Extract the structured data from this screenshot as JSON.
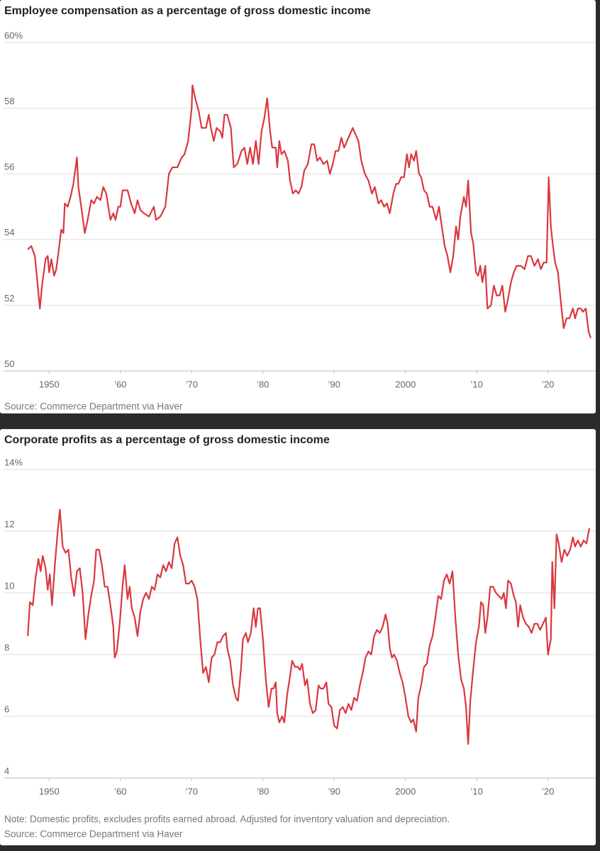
{
  "chart_data": [
    {
      "type": "line",
      "title": "Employee compensation as a percentage of gross domestic income",
      "source": "Source: Commerce Department via Haver",
      "x": [
        1947,
        1947.5,
        1948,
        1948.7,
        1949,
        1949.5,
        1949.8,
        1950,
        1950.3,
        1950.7,
        1951,
        1951.3,
        1951.7,
        1952,
        1952.2,
        1952.6,
        1953,
        1953.4,
        1953.9,
        1954.1,
        1954.5,
        1955,
        1955.4,
        1955.9,
        1956.3,
        1956.7,
        1957.2,
        1957.6,
        1958,
        1958.3,
        1958.6,
        1959,
        1959.3,
        1959.7,
        1960,
        1960.3,
        1961,
        1961.5,
        1962,
        1962.4,
        1962.8,
        1963.3,
        1964,
        1964.7,
        1965,
        1965.6,
        1966.3,
        1966.8,
        1967.3,
        1968,
        1968.6,
        1969,
        1969.5,
        1970,
        1970.1,
        1970.5,
        1971,
        1971.4,
        1972,
        1972.4,
        1972.7,
        1973.1,
        1973.5,
        1974,
        1974.3,
        1974.6,
        1975,
        1975.5,
        1975.9,
        1976.4,
        1977,
        1977.4,
        1977.8,
        1978.2,
        1978.6,
        1979,
        1979.4,
        1979.8,
        1980.2,
        1980.6,
        1981,
        1981.3,
        1981.8,
        1982,
        1982.3,
        1982.6,
        1983,
        1983.5,
        1983.8,
        1984.2,
        1984.6,
        1985,
        1985.4,
        1985.8,
        1986.3,
        1986.8,
        1987.2,
        1987.6,
        1988,
        1988.5,
        1989,
        1989.4,
        1989.8,
        1990.2,
        1990.6,
        1991,
        1991.4,
        1991.8,
        1992.2,
        1992.6,
        1993,
        1993.4,
        1993.8,
        1994.3,
        1994.8,
        1995.3,
        1995.7,
        1996.2,
        1996.6,
        1997,
        1997.4,
        1997.8,
        1998.3,
        1998.7,
        1999,
        1999.4,
        1999.8,
        2000.2,
        2000.5,
        2000.8,
        2001.2,
        2001.5,
        2001.9,
        2002.2,
        2002.6,
        2003,
        2003.4,
        2003.8,
        2004.3,
        2004.7,
        2005.1,
        2005.5,
        2005.9,
        2006.3,
        2006.7,
        2007.1,
        2007.4,
        2007.7,
        2008.2,
        2008.5,
        2008.8,
        2009.2,
        2009.5,
        2009.9,
        2010.2,
        2010.5,
        2010.8,
        2011.2,
        2011.5,
        2012,
        2012.4,
        2012.8,
        2013.2,
        2013.6,
        2014,
        2014.4,
        2014.8,
        2015.2,
        2015.6,
        2016.2,
        2016.7,
        2017.2,
        2017.6,
        2018.1,
        2018.6,
        2019,
        2019.4,
        2019.8,
        2020.1,
        2020.4,
        2020.7,
        2021,
        2021.4,
        2021.8,
        2022.2,
        2022.6,
        2023,
        2023.5,
        2023.8,
        2024.2,
        2024.6,
        2024.9,
        2025.3,
        2025.7,
        2026
      ],
      "values": [
        53.7,
        53.8,
        53.5,
        51.9,
        52.6,
        53.4,
        53.5,
        53.0,
        53.4,
        52.9,
        53.1,
        53.6,
        54.3,
        54.2,
        55.1,
        55.0,
        55.3,
        55.7,
        56.5,
        55.6,
        55.0,
        54.2,
        54.6,
        55.2,
        55.1,
        55.3,
        55.2,
        55.6,
        55.4,
        55.0,
        54.6,
        54.8,
        54.6,
        55.0,
        55.0,
        55.5,
        55.5,
        55.1,
        54.8,
        55.2,
        54.9,
        54.8,
        54.7,
        55.0,
        54.6,
        54.7,
        55.0,
        56.0,
        56.2,
        56.2,
        56.5,
        56.6,
        57.0,
        58.0,
        58.7,
        58.3,
        57.9,
        57.4,
        57.4,
        57.8,
        57.4,
        57.0,
        57.4,
        57.3,
        57.1,
        57.8,
        57.8,
        57.4,
        56.2,
        56.3,
        56.7,
        56.8,
        56.3,
        56.8,
        56.3,
        57.0,
        56.3,
        57.3,
        57.7,
        58.3,
        57.3,
        56.8,
        56.8,
        56.2,
        57.0,
        56.6,
        56.7,
        56.4,
        55.8,
        55.4,
        55.5,
        55.4,
        55.6,
        56.1,
        56.3,
        56.9,
        56.9,
        56.4,
        56.5,
        56.3,
        56.4,
        56.0,
        56.3,
        56.7,
        56.7,
        57.1,
        56.8,
        57.0,
        57.2,
        57.4,
        57.2,
        57.0,
        56.4,
        56.0,
        55.8,
        55.4,
        55.6,
        55.1,
        55.2,
        55.0,
        55.1,
        54.8,
        55.4,
        55.7,
        55.7,
        55.9,
        55.9,
        56.6,
        56.2,
        56.6,
        56.4,
        56.7,
        56.0,
        55.9,
        55.5,
        55.4,
        55.0,
        55.0,
        54.6,
        55.0,
        54.4,
        53.8,
        53.5,
        53.0,
        53.5,
        54.4,
        54.0,
        54.7,
        55.3,
        55.0,
        55.8,
        54.2,
        53.9,
        53.0,
        52.9,
        53.2,
        52.7,
        53.2,
        51.9,
        52.0,
        52.6,
        52.3,
        52.3,
        52.6,
        51.8,
        52.2,
        52.7,
        53.0,
        53.2,
        53.2,
        53.1,
        53.5,
        53.5,
        53.2,
        53.4,
        53.1,
        53.3,
        53.3,
        55.9,
        54.4,
        53.8,
        53.3,
        53.0,
        52.1,
        51.3,
        51.6,
        51.6,
        51.9,
        51.6,
        51.9,
        51.9,
        51.8,
        51.9,
        51.2,
        51.0
      ],
      "color": "#d9383f",
      "xlim": [
        1943.6,
        2026.7
      ],
      "xticks": [
        1950,
        {
          "value": 1960,
          "label": "’60"
        },
        {
          "value": 1970,
          "label": "’70"
        },
        {
          "value": 1980,
          "label": "’80"
        },
        {
          "value": 1990,
          "label": "’90"
        },
        2000,
        {
          "value": 2010,
          "label": "’10"
        },
        {
          "value": 2020,
          "label": "’20"
        }
      ],
      "ylim": [
        50,
        60
      ],
      "yticks": [
        50,
        52,
        54,
        56,
        58,
        {
          "value": 60,
          "label": "60%"
        }
      ],
      "grid": true
    },
    {
      "type": "line",
      "title": "Corporate profits as a percentage of gross domestic income",
      "note": "Note: Domestic profits, excludes profits earned abroad. Adjusted for inventory valuation and depreciation.",
      "source": "Source: Commerce Department via Haver",
      "x": [
        1947,
        1947.3,
        1947.7,
        1948.1,
        1948.5,
        1948.8,
        1949.1,
        1949.5,
        1949.8,
        1950.1,
        1950.4,
        1950.8,
        1951.2,
        1951.5,
        1951.9,
        1952.3,
        1952.7,
        1953.1,
        1953.5,
        1953.9,
        1954.3,
        1954.7,
        1955.1,
        1955.5,
        1955.9,
        1956.3,
        1956.6,
        1957,
        1957.4,
        1957.8,
        1958.2,
        1958.6,
        1959,
        1959.2,
        1959.5,
        1959.9,
        1960.3,
        1960.6,
        1961,
        1961.3,
        1961.6,
        1962,
        1962.4,
        1962.8,
        1963.2,
        1963.6,
        1964,
        1964.4,
        1964.8,
        1965.2,
        1965.6,
        1966,
        1966.4,
        1966.8,
        1967.2,
        1967.6,
        1968,
        1968.4,
        1968.8,
        1969.2,
        1969.6,
        1970,
        1970.4,
        1970.8,
        1971.2,
        1971.6,
        1972,
        1972.4,
        1972.8,
        1973.2,
        1973.6,
        1974,
        1974.4,
        1974.8,
        1975,
        1975.4,
        1975.8,
        1976.2,
        1976.5,
        1976.9,
        1977.2,
        1977.6,
        1977.9,
        1978.3,
        1978.7,
        1979,
        1979.3,
        1979.6,
        1980,
        1980.4,
        1980.8,
        1981.2,
        1981.5,
        1981.8,
        1982,
        1982.3,
        1982.7,
        1983,
        1983.4,
        1983.8,
        1984.1,
        1984.5,
        1984.9,
        1985.2,
        1985.5,
        1985.9,
        1986.2,
        1986.6,
        1987,
        1987.4,
        1987.8,
        1988.1,
        1988.5,
        1988.9,
        1989.2,
        1989.6,
        1990,
        1990.4,
        1990.8,
        1991.2,
        1991.6,
        1992,
        1992.4,
        1992.8,
        1993.2,
        1993.6,
        1994,
        1994.4,
        1994.8,
        1995.2,
        1995.6,
        1996,
        1996.4,
        1996.8,
        1997.2,
        1997.5,
        1997.8,
        1998.1,
        1998.4,
        1998.8,
        1999.2,
        1999.6,
        2000,
        2000.4,
        2000.8,
        2001.1,
        2001.5,
        2001.8,
        2002.2,
        2002.6,
        2003,
        2003.4,
        2003.8,
        2004.2,
        2004.6,
        2005,
        2005.4,
        2005.8,
        2006.2,
        2006.6,
        2007,
        2007.4,
        2007.8,
        2008.2,
        2008.5,
        2008.8,
        2009.1,
        2009.5,
        2009.9,
        2010.3,
        2010.6,
        2010.9,
        2011.2,
        2011.5,
        2011.9,
        2012.3,
        2012.7,
        2013.1,
        2013.5,
        2013.8,
        2014.1,
        2014.4,
        2014.8,
        2015.2,
        2015.5,
        2015.8,
        2016.1,
        2016.5,
        2016.9,
        2017.3,
        2017.7,
        2018.1,
        2018.5,
        2018.9,
        2019.3,
        2019.7,
        2020,
        2020.4,
        2020.6,
        2020.9,
        2021.2,
        2021.5,
        2021.9,
        2022.3,
        2022.7,
        2023.1,
        2023.5,
        2023.8,
        2024.2,
        2024.6,
        2025,
        2025.4,
        2025.8
      ],
      "values": [
        8.6,
        9.7,
        9.6,
        10.5,
        11.1,
        10.7,
        11.2,
        10.8,
        10.1,
        10.6,
        9.6,
        10.9,
        12.0,
        12.7,
        11.5,
        11.3,
        11.4,
        10.5,
        9.9,
        10.7,
        10.8,
        10.0,
        8.5,
        9.3,
        9.9,
        10.4,
        11.4,
        11.4,
        10.9,
        10.2,
        10.2,
        9.6,
        8.9,
        7.9,
        8.1,
        9.0,
        10.2,
        10.9,
        9.8,
        10.2,
        9.5,
        9.2,
        8.6,
        9.4,
        9.8,
        10.0,
        9.8,
        10.2,
        10.1,
        10.6,
        10.5,
        10.9,
        10.7,
        11.0,
        10.8,
        11.6,
        11.8,
        11.2,
        10.9,
        10.3,
        10.3,
        10.4,
        10.2,
        9.8,
        8.5,
        7.4,
        7.6,
        7.1,
        7.9,
        8.0,
        8.4,
        8.4,
        8.6,
        8.7,
        8.2,
        7.8,
        7.0,
        6.6,
        6.5,
        7.5,
        8.5,
        8.7,
        8.4,
        8.7,
        9.5,
        8.9,
        9.5,
        9.5,
        8.5,
        7.2,
        6.3,
        6.9,
        6.9,
        7.1,
        6.1,
        5.8,
        6.0,
        5.8,
        6.7,
        7.3,
        7.8,
        7.6,
        7.6,
        7.5,
        7.7,
        7.0,
        7.2,
        6.4,
        6.1,
        6.2,
        7.0,
        6.9,
        6.9,
        7.1,
        6.4,
        6.3,
        5.7,
        5.6,
        6.2,
        6.3,
        6.1,
        6.4,
        6.2,
        6.6,
        6.5,
        7.0,
        7.4,
        7.9,
        8.1,
        8.0,
        8.6,
        8.8,
        8.7,
        8.9,
        9.3,
        9.0,
        8.2,
        7.9,
        8.0,
        7.8,
        7.4,
        7.1,
        6.6,
        6.0,
        5.8,
        5.9,
        5.5,
        6.6,
        7.0,
        7.6,
        7.7,
        8.3,
        8.6,
        9.2,
        9.9,
        9.8,
        10.4,
        10.6,
        10.3,
        10.7,
        9.2,
        8.0,
        7.2,
        6.9,
        6.3,
        5.1,
        6.5,
        7.5,
        8.4,
        8.9,
        9.7,
        9.6,
        8.7,
        9.2,
        10.2,
        10.2,
        10.0,
        9.9,
        9.8,
        10.0,
        9.5,
        10.4,
        10.3,
        9.9,
        9.7,
        8.9,
        9.6,
        9.2,
        9.0,
        8.9,
        8.7,
        9.0,
        9.0,
        8.8,
        9.0,
        9.2,
        8.0,
        8.5,
        11.0,
        9.5,
        11.9,
        11.6,
        11.0,
        11.4,
        11.2,
        11.4,
        11.8,
        11.5,
        11.7,
        11.5,
        11.7,
        11.6,
        12.1
      ],
      "color": "#d9383f",
      "xlim": [
        1943.6,
        2026.7
      ],
      "xticks": [
        1950,
        {
          "value": 1960,
          "label": "’60"
        },
        {
          "value": 1970,
          "label": "’70"
        },
        {
          "value": 1980,
          "label": "’80"
        },
        {
          "value": 1990,
          "label": "’90"
        },
        2000,
        {
          "value": 2010,
          "label": "’10"
        },
        {
          "value": 2020,
          "label": "’20"
        }
      ],
      "ylim": [
        4,
        14
      ],
      "yticks": [
        4,
        6,
        8,
        10,
        12,
        {
          "value": 14,
          "label": "14%"
        }
      ],
      "grid": true
    }
  ]
}
